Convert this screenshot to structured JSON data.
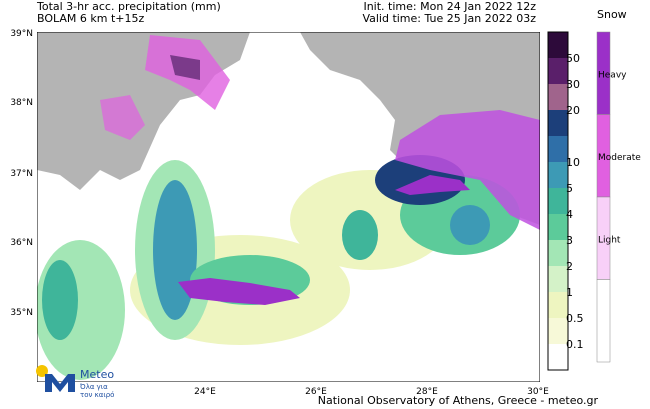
{
  "header": {
    "title_line1": "Total 3-hr acc. precipitation (mm)",
    "title_line2": "BOLAM 6 km t+15z",
    "init_time": "Init. time: Mon 24 Jan 2022 12z",
    "valid_time": "Valid time: Tue 25 Jan 2022 03z"
  },
  "map": {
    "lat_labels": [
      "39°N",
      "38°N",
      "37°N",
      "36°N",
      "35°N"
    ],
    "lon_labels": [
      "24°E",
      "26°E",
      "28°E",
      "30°E"
    ]
  },
  "precip_scale": {
    "labels": [
      "50",
      "30",
      "20",
      "10",
      "5",
      "4",
      "3",
      "2",
      "1",
      "0.5",
      "0.1"
    ]
  },
  "snow_scale": {
    "title": "Snow",
    "labels": [
      "Heavy",
      "Moderate",
      "Light"
    ]
  },
  "logo": {
    "name": "Meteo",
    "tagline_line1": "Όλα για",
    "tagline_line2": "τον καιρό"
  },
  "footer": "National Observatory of Athens, Greece - meteo.gr"
}
